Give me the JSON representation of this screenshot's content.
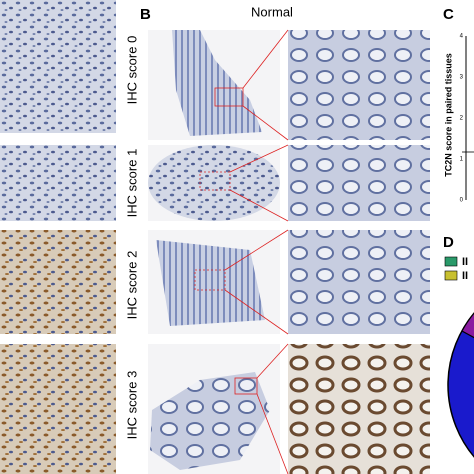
{
  "panel_b": {
    "label": "B",
    "title": "Normal",
    "rows": [
      "IHC score 0",
      "IHC score 1",
      "IHC score 2",
      "IHC score 3"
    ]
  },
  "panel_c": {
    "label": "C",
    "y_label": "TC2N score in paired tissues",
    "yticks": [
      "4",
      "3",
      "2",
      "1",
      "0"
    ]
  },
  "panel_d": {
    "label": "D",
    "legend": [
      "II",
      "II"
    ]
  }
}
